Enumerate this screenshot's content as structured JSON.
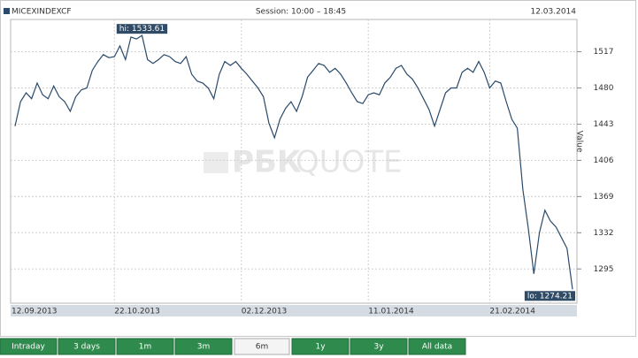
{
  "header": {
    "symbol": "MICEXINDEXCF",
    "session": "Session: 10:00 – 18:45",
    "date": "12.03.2014"
  },
  "watermark": {
    "brand": "РБК",
    "product": "QUOTE"
  },
  "chart_data": {
    "type": "line",
    "y_label": "Value",
    "color": "#2b4a6b",
    "grid": true,
    "categories": [
      "12.09.2013",
      null,
      null,
      null,
      null,
      null,
      null,
      null,
      null,
      null,
      null,
      null,
      null,
      null,
      null,
      null,
      null,
      null,
      "22.10.2013",
      null,
      null,
      null,
      null,
      null,
      null,
      null,
      null,
      null,
      null,
      null,
      null,
      null,
      null,
      null,
      null,
      null,
      null,
      null,
      null,
      null,
      null,
      "02.12.2013",
      null,
      null,
      null,
      null,
      null,
      null,
      null,
      null,
      null,
      null,
      null,
      null,
      null,
      null,
      null,
      null,
      null,
      null,
      null,
      null,
      null,
      null,
      "11.01.2014",
      null,
      null,
      null,
      null,
      null,
      null,
      null,
      null,
      null,
      null,
      null,
      null,
      null,
      null,
      null,
      null,
      null,
      null,
      null,
      null,
      null,
      "21.02.2014",
      null,
      null,
      null,
      null,
      null,
      null,
      null,
      null,
      null,
      null,
      null,
      null,
      null,
      null,
      null
    ],
    "values": [
      1441,
      1466,
      1475,
      1469,
      1485,
      1473,
      1469,
      1482,
      1471,
      1466,
      1456,
      1471,
      1478,
      1480,
      1498,
      1507,
      1514,
      1511,
      1512,
      1523,
      1509,
      1532,
      1530,
      1533.61,
      1509,
      1505,
      1509,
      1514,
      1512,
      1507,
      1505,
      1512,
      1494,
      1487,
      1485,
      1480,
      1469,
      1494,
      1507,
      1503,
      1507,
      1500,
      1494,
      1487,
      1480,
      1471,
      1444,
      1429,
      1448,
      1459,
      1466,
      1456,
      1471,
      1491,
      1498,
      1505,
      1503,
      1496,
      1500,
      1494,
      1485,
      1475,
      1466,
      1464,
      1473,
      1475,
      1473,
      1485,
      1491,
      1500,
      1503,
      1494,
      1489,
      1480,
      1469,
      1458,
      1441,
      1458,
      1475,
      1480,
      1480,
      1496,
      1500,
      1496,
      1507,
      1496,
      1480,
      1487,
      1485,
      1466,
      1448,
      1439,
      1376,
      1336,
      1290,
      1332,
      1355,
      1344,
      1338,
      1327,
      1316,
      1274.21
    ],
    "ylim": [
      1260,
      1550
    ],
    "yticks": [
      1295,
      1332,
      1369,
      1406,
      1443,
      1480,
      1517
    ],
    "annotations": {
      "hi": "hi: 1533.61",
      "lo": "lo: 1274.21"
    }
  },
  "tabs": [
    "Intraday",
    "3 days",
    "1m",
    "3m",
    "6m",
    "1y",
    "3y",
    "All data"
  ],
  "active_tab": 4
}
